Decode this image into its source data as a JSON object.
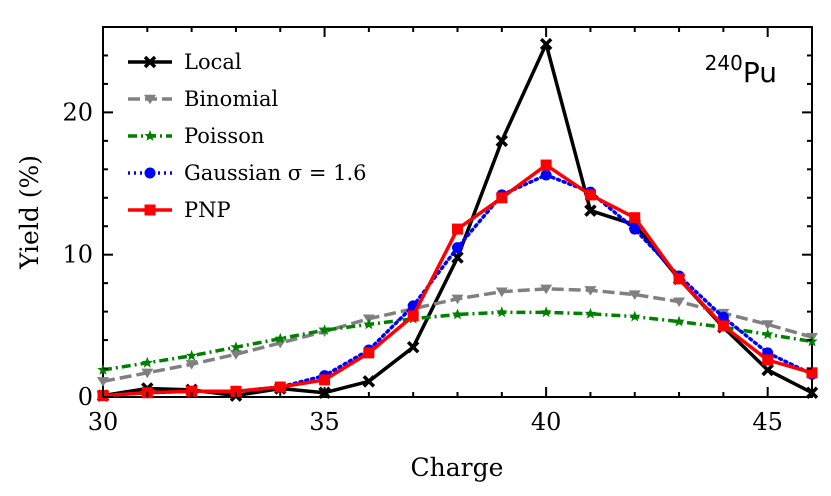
{
  "chart_data": {
    "type": "line",
    "title": "",
    "xlabel": "Charge",
    "ylabel": "Yield (%)",
    "xlim": [
      30,
      46
    ],
    "ylim": [
      0,
      26
    ],
    "xticks": [
      30,
      35,
      40,
      45
    ],
    "yticks": [
      0,
      10,
      20
    ],
    "x_tick_labels": [
      "30",
      "35",
      "40",
      "45"
    ],
    "y_tick_labels": [
      "0",
      "10",
      "20"
    ],
    "grid": false,
    "legend_position": "top-left",
    "annotation": {
      "superscript": "240",
      "text": "Pu",
      "position": "top-right"
    },
    "x": [
      30,
      31,
      32,
      33,
      34,
      35,
      36,
      37,
      38,
      39,
      40,
      41,
      42,
      43,
      44,
      45,
      46
    ],
    "series": [
      {
        "name": "Local",
        "color": "#000000",
        "dash": "solid",
        "marker": "x",
        "values": [
          0.1,
          0.6,
          0.5,
          0.1,
          0.6,
          0.3,
          1.1,
          3.5,
          9.8,
          18.0,
          24.8,
          13.1,
          12.1,
          8.3,
          4.9,
          1.9,
          0.3
        ]
      },
      {
        "name": "Binomial",
        "color": "#808080",
        "dash": "dashed",
        "marker": "triangle-down",
        "values": [
          1.1,
          1.7,
          2.3,
          3.0,
          3.8,
          4.6,
          5.5,
          6.2,
          6.9,
          7.4,
          7.6,
          7.5,
          7.2,
          6.7,
          5.9,
          5.1,
          4.2
        ]
      },
      {
        "name": "Poisson",
        "color": "#008000",
        "dash": "dashdot",
        "marker": "star",
        "values": [
          1.9,
          2.4,
          2.9,
          3.5,
          4.1,
          4.7,
          5.1,
          5.5,
          5.8,
          5.95,
          5.95,
          5.85,
          5.65,
          5.3,
          4.9,
          4.4,
          3.9
        ]
      },
      {
        "name": "Gaussian σ = 1.6",
        "color": "#0000ff",
        "dash": "dotted",
        "marker": "circle",
        "values": [
          0.1,
          0.3,
          0.4,
          0.4,
          0.7,
          1.5,
          3.3,
          6.4,
          10.5,
          14.2,
          15.6,
          14.4,
          11.8,
          8.5,
          5.6,
          3.1,
          1.6
        ]
      },
      {
        "name": "PNP",
        "color": "#ff0000",
        "dash": "solid",
        "marker": "square",
        "values": [
          0.1,
          0.3,
          0.4,
          0.4,
          0.7,
          1.2,
          3.1,
          5.7,
          11.8,
          14.0,
          16.3,
          14.2,
          12.6,
          8.3,
          5.0,
          2.6,
          1.7
        ]
      }
    ]
  }
}
